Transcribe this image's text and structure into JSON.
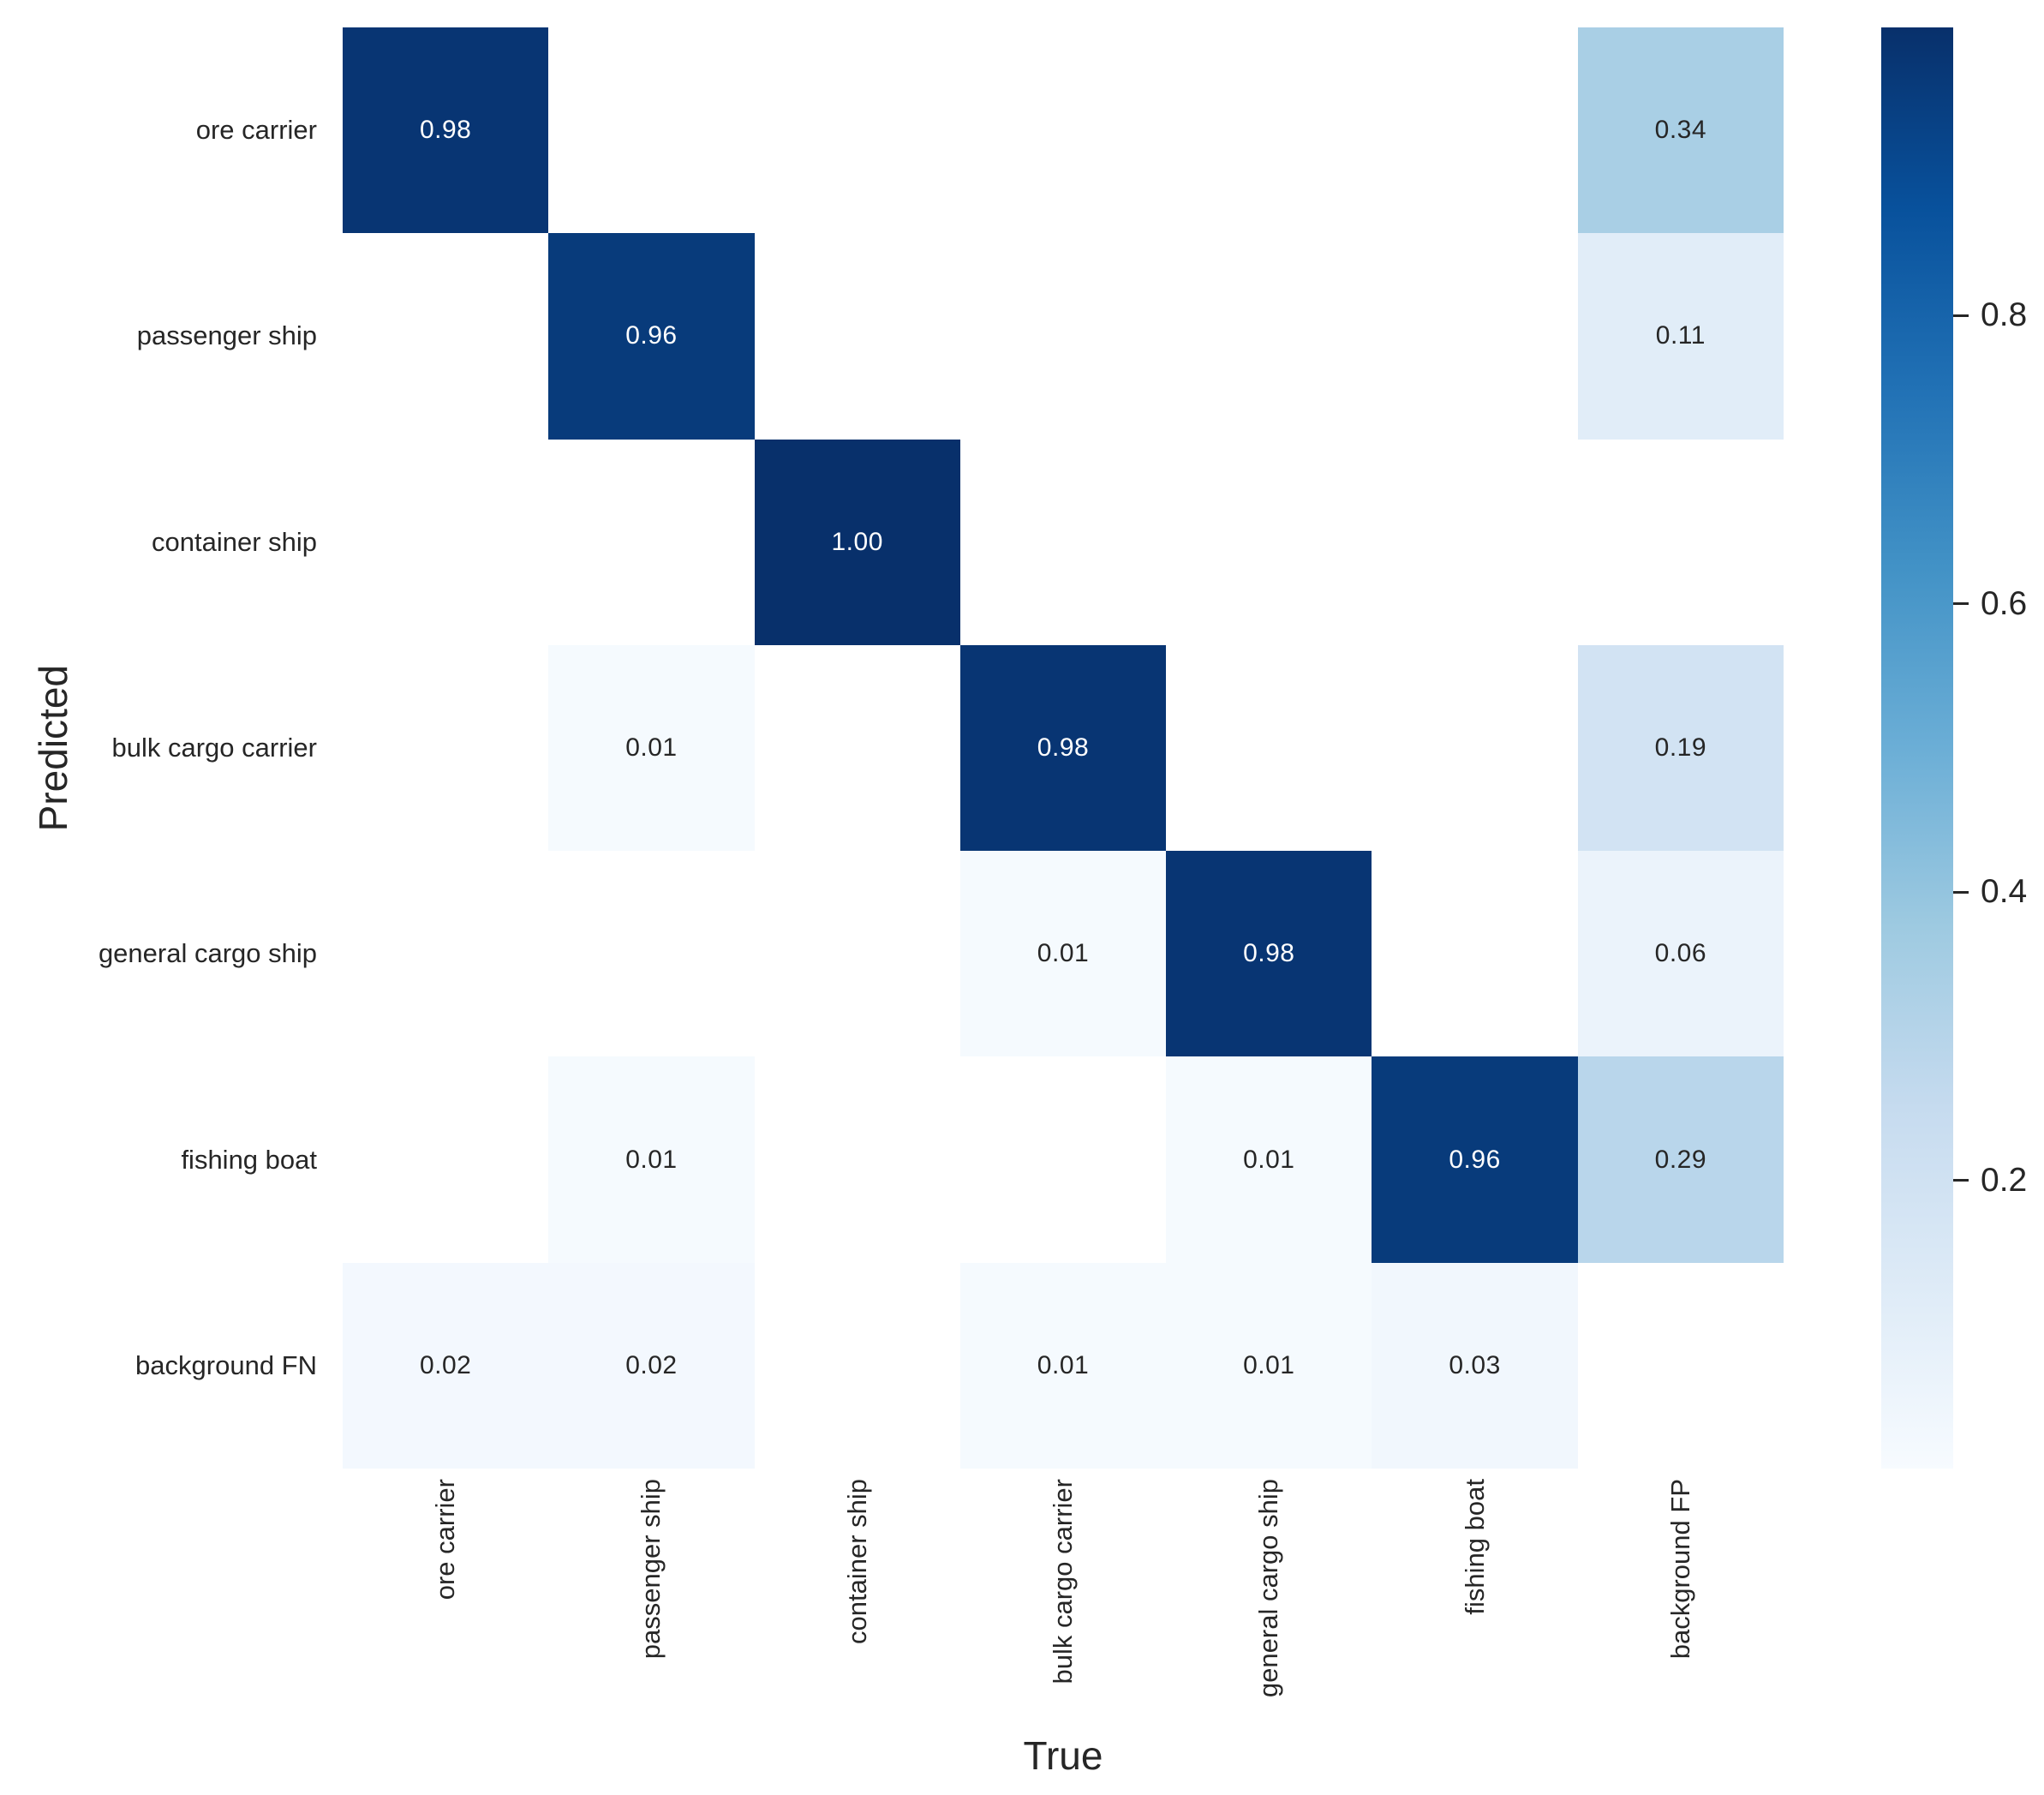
{
  "figure": {
    "background": "#ffffff",
    "text_color": "#262626",
    "annotation_light_text": "#ffffff",
    "empty_cell_color": "#ffffff"
  },
  "chart_data": {
    "type": "heatmap",
    "title": "",
    "xlabel": "True",
    "ylabel": "Predicted",
    "x_categories": [
      "ore carrier",
      "passenger ship",
      "container ship",
      "bulk cargo carrier",
      "general cargo ship",
      "fishing boat",
      "background FP"
    ],
    "y_categories": [
      "ore carrier",
      "passenger ship",
      "container ship",
      "bulk cargo carrier",
      "general cargo ship",
      "fishing boat",
      "background FN"
    ],
    "matrix": [
      [
        0.98,
        null,
        null,
        null,
        null,
        null,
        0.34
      ],
      [
        null,
        0.96,
        null,
        null,
        null,
        null,
        0.11
      ],
      [
        null,
        null,
        1.0,
        null,
        null,
        null,
        null
      ],
      [
        null,
        0.01,
        null,
        0.98,
        null,
        null,
        0.19
      ],
      [
        null,
        null,
        null,
        0.01,
        0.98,
        null,
        0.06
      ],
      [
        null,
        0.01,
        null,
        null,
        0.01,
        0.96,
        0.29
      ],
      [
        0.02,
        0.02,
        null,
        0.01,
        0.01,
        0.03,
        null
      ]
    ],
    "value_range": [
      0,
      1
    ],
    "annotation_decimals": 2,
    "annotation_white_text_threshold": 0.5,
    "grid": false,
    "colormap": {
      "name": "Blues",
      "anchors": [
        "#f7fbff",
        "#deebf7",
        "#c6dbef",
        "#9ecae1",
        "#6baed6",
        "#4292c6",
        "#2171b5",
        "#08519c",
        "#08306b"
      ]
    },
    "colorbar": {
      "position": "right",
      "ticks": [
        {
          "value": 0.8,
          "label": "0.8"
        },
        {
          "value": 0.6,
          "label": "0.6"
        },
        {
          "value": 0.4,
          "label": "0.4"
        },
        {
          "value": 0.2,
          "label": "0.2"
        }
      ]
    }
  }
}
